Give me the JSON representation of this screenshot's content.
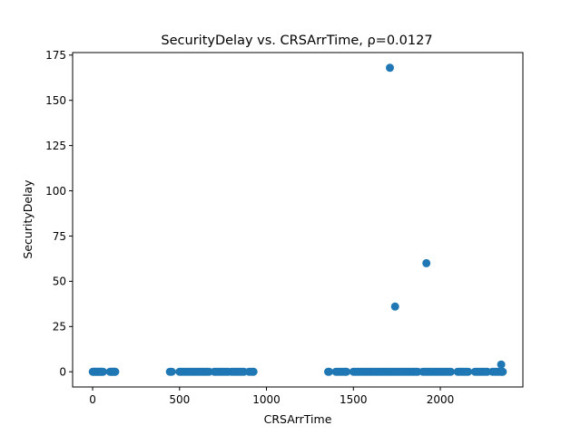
{
  "chart_data": {
    "type": "scatter",
    "title": "SecurityDelay vs. CRSArrTime, ρ=0.0127",
    "xlabel": "CRSArrTime",
    "ylabel": "SecurityDelay",
    "xlim": [
      -115,
      2475
    ],
    "ylim": [
      -8.4,
      176.4
    ],
    "x_ticks": [
      0,
      500,
      1000,
      1500,
      2000
    ],
    "y_ticks": [
      0,
      25,
      50,
      75,
      100,
      125,
      150,
      175
    ],
    "x_tick_labels": [
      "0",
      "500",
      "1000",
      "1500",
      "2000"
    ],
    "y_tick_labels": [
      "0",
      "25",
      "50",
      "75",
      "100",
      "125",
      "150",
      "175"
    ],
    "grid": false,
    "marker_color": "#1f77b4",
    "series": [
      {
        "x": [
          1,
          5,
          10,
          15,
          20,
          25,
          30,
          35,
          40,
          45,
          50,
          55,
          60,
          100,
          105,
          110,
          115,
          120,
          125,
          130,
          445,
          455,
          500,
          510,
          520,
          530,
          540,
          550,
          560,
          570,
          580,
          590,
          600,
          610,
          620,
          630,
          640,
          650,
          660,
          670,
          700,
          710,
          720,
          730,
          740,
          750,
          760,
          770,
          780,
          800,
          810,
          820,
          830,
          840,
          850,
          860,
          870,
          900,
          910,
          920,
          925,
          1355,
          1360,
          1400,
          1410,
          1420,
          1430,
          1440,
          1450,
          1460,
          1500,
          1510,
          1520,
          1530,
          1540,
          1550,
          1560,
          1570,
          1580,
          1590,
          1600,
          1610,
          1620,
          1630,
          1640,
          1650,
          1660,
          1670,
          1680,
          1690,
          1700,
          1710,
          1720,
          1730,
          1740,
          1750,
          1760,
          1770,
          1780,
          1790,
          1800,
          1810,
          1820,
          1830,
          1840,
          1850,
          1860,
          1870,
          1900,
          1910,
          1920,
          1930,
          1940,
          1950,
          1960,
          1970,
          1980,
          1990,
          2000,
          2010,
          2020,
          2030,
          2040,
          2050,
          2060,
          2100,
          2110,
          2120,
          2130,
          2140,
          2150,
          2160,
          2200,
          2210,
          2220,
          2230,
          2240,
          2250,
          2260,
          2270,
          2300,
          2310,
          2320,
          2330,
          2340,
          2350,
          2355,
          2359,
          1710,
          1740,
          1920,
          2350
        ],
        "y": [
          0,
          0,
          0,
          0,
          0,
          0,
          0,
          0,
          0,
          0,
          0,
          0,
          0,
          0,
          0,
          0,
          0,
          0,
          0,
          0,
          0,
          0,
          0,
          0,
          0,
          0,
          0,
          0,
          0,
          0,
          0,
          0,
          0,
          0,
          0,
          0,
          0,
          0,
          0,
          0,
          0,
          0,
          0,
          0,
          0,
          0,
          0,
          0,
          0,
          0,
          0,
          0,
          0,
          0,
          0,
          0,
          0,
          0,
          0,
          0,
          0,
          0,
          0,
          0,
          0,
          0,
          0,
          0,
          0,
          0,
          0,
          0,
          0,
          0,
          0,
          0,
          0,
          0,
          0,
          0,
          0,
          0,
          0,
          0,
          0,
          0,
          0,
          0,
          0,
          0,
          0,
          0,
          0,
          0,
          0,
          0,
          0,
          0,
          0,
          0,
          0,
          0,
          0,
          0,
          0,
          0,
          0,
          0,
          0,
          0,
          0,
          0,
          0,
          0,
          0,
          0,
          0,
          0,
          0,
          0,
          0,
          0,
          0,
          0,
          0,
          0,
          0,
          0,
          0,
          0,
          0,
          0,
          0,
          0,
          0,
          0,
          0,
          0,
          0,
          0,
          0,
          0,
          0,
          0,
          0,
          0,
          0,
          0,
          168,
          36,
          60,
          4
        ]
      }
    ]
  }
}
